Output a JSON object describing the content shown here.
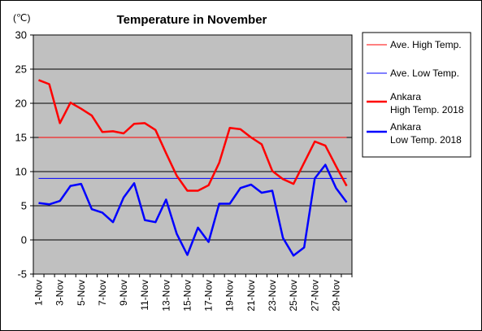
{
  "chart_data": {
    "type": "line",
    "title": "Temperature in November",
    "ylabel": "(℃)",
    "xlabel": "",
    "ylim": [
      -5,
      30
    ],
    "yticks": [
      "30",
      "25",
      "20",
      "15",
      "10",
      "5",
      "0",
      "-5"
    ],
    "grid": true,
    "legend_position": "right",
    "categories": [
      "1-Nov",
      "2-Nov",
      "3-Nov",
      "4-Nov",
      "5-Nov",
      "6-Nov",
      "7-Nov",
      "8-Nov",
      "9-Nov",
      "10-Nov",
      "11-Nov",
      "12-Nov",
      "13-Nov",
      "14-Nov",
      "15-Nov",
      "16-Nov",
      "17-Nov",
      "18-Nov",
      "19-Nov",
      "20-Nov",
      "21-Nov",
      "22-Nov",
      "23-Nov",
      "24-Nov",
      "25-Nov",
      "26-Nov",
      "27-Nov",
      "28-Nov",
      "29-Nov",
      "30-Nov"
    ],
    "xtick_labels": [
      "1-Nov",
      "3-Nov",
      "5-Nov",
      "7-Nov",
      "9-Nov",
      "11-Nov",
      "13-Nov",
      "15-Nov",
      "17-Nov",
      "19-Nov",
      "21-Nov",
      "23-Nov",
      "25-Nov",
      "27-Nov",
      "29-Nov"
    ],
    "series": [
      {
        "name": "Ave. High Temp.",
        "color": "#ff0000",
        "width": 1,
        "values": [
          15,
          15,
          15,
          15,
          15,
          15,
          15,
          15,
          15,
          15,
          15,
          15,
          15,
          15,
          15,
          15,
          15,
          15,
          15,
          15,
          15,
          15,
          15,
          15,
          15,
          15,
          15,
          15,
          15,
          15
        ]
      },
      {
        "name": "Ave. Low Temp.",
        "color": "#0000ff",
        "width": 1,
        "values": [
          9,
          9,
          9,
          9,
          9,
          9,
          9,
          9,
          9,
          9,
          9,
          9,
          9,
          9,
          9,
          9,
          9,
          9,
          9,
          9,
          9,
          9,
          9,
          9,
          9,
          9,
          9,
          9,
          9,
          9
        ]
      },
      {
        "name": "Ankara High Temp. 2018",
        "legend_lines": [
          "Ankara",
          "High Temp. 2018"
        ],
        "color": "#ff0000",
        "width": 2.5,
        "values": [
          23.4,
          22.8,
          17.1,
          20.1,
          19.2,
          18.2,
          15.8,
          15.9,
          15.6,
          17.0,
          17.1,
          16.1,
          12.7,
          9.4,
          7.2,
          7.2,
          8.0,
          11.3,
          16.4,
          16.2,
          15.0,
          14.0,
          10.1,
          8.9,
          8.2,
          11.3,
          14.4,
          13.8,
          10.8,
          7.9
        ]
      },
      {
        "name": "Ankara Low Temp. 2018",
        "legend_lines": [
          "Ankara",
          "Low Temp. 2018"
        ],
        "color": "#0000ff",
        "width": 2.5,
        "values": [
          5.4,
          5.2,
          5.7,
          7.9,
          8.2,
          4.5,
          4.0,
          2.6,
          6.2,
          8.3,
          2.9,
          2.6,
          5.9,
          0.9,
          -2.2,
          1.8,
          -0.3,
          5.3,
          5.3,
          7.6,
          8.1,
          6.9,
          7.2,
          0.3,
          -2.3,
          -1.1,
          9.0,
          11.0,
          7.6,
          5.5
        ]
      }
    ]
  }
}
